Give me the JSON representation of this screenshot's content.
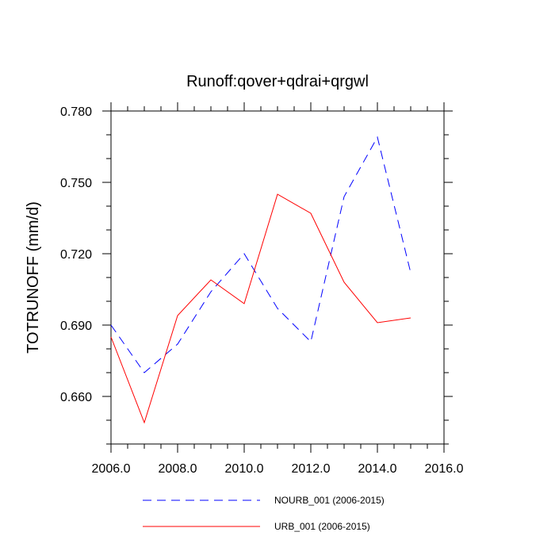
{
  "chart_data": {
    "type": "line",
    "title": "Runoff:qover+qdrai+qrgwl",
    "xlabel": "",
    "ylabel": "TOTRUNOFF  (mm/d)",
    "xlim": [
      2006,
      2016
    ],
    "ylim": [
      0.64,
      0.78
    ],
    "x_ticks": [
      2006,
      2008,
      2010,
      2012,
      2014,
      2016
    ],
    "x_tick_labels": [
      "2006.0",
      "2008.0",
      "2010.0",
      "2012.0",
      "2014.0",
      "2016.0"
    ],
    "y_ticks": [
      0.66,
      0.69,
      0.72,
      0.75,
      0.78
    ],
    "y_tick_labels": [
      "0.660",
      "0.690",
      "0.720",
      "0.750",
      "0.780"
    ],
    "x_minor_step": 0.5,
    "y_minor_step": 0.01,
    "grid": false,
    "legend_position": "bottom",
    "x": [
      2006,
      2007,
      2008,
      2009,
      2010,
      2011,
      2012,
      2013,
      2014,
      2015
    ],
    "series": [
      {
        "name": "NOURB_001 (2006-2015)",
        "color": "#0000ff",
        "dash": "dashed",
        "values": [
          0.69,
          0.67,
          0.682,
          0.704,
          0.72,
          0.697,
          0.683,
          0.744,
          0.769,
          0.712
        ]
      },
      {
        "name": "URB_001 (2006-2015)",
        "color": "#ff0000",
        "dash": "solid",
        "values": [
          0.685,
          0.649,
          0.694,
          0.709,
          0.699,
          0.745,
          0.737,
          0.708,
          0.691,
          0.693
        ]
      }
    ]
  }
}
